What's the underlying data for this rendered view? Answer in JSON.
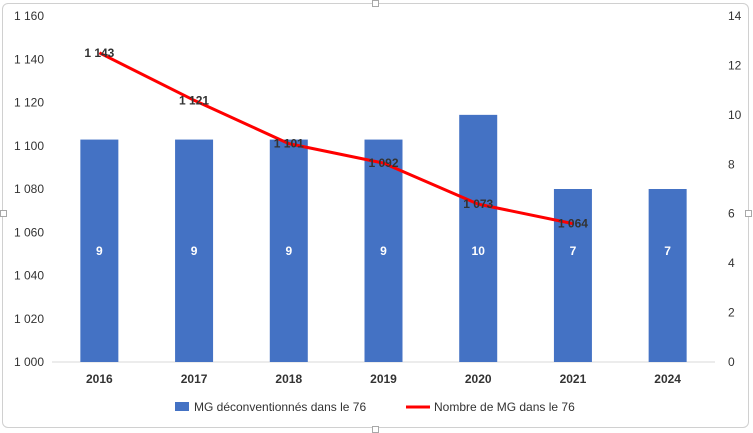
{
  "chart_data": {
    "type": "bar",
    "categories": [
      "2016",
      "2017",
      "2018",
      "2019",
      "2020",
      "2021",
      "2024"
    ],
    "series": [
      {
        "name": "MG déconventionnés dans le 76",
        "type": "bar",
        "axis": "secondary",
        "color": "#4472C4",
        "values": [
          9,
          9,
          9,
          9,
          10,
          7,
          7
        ],
        "labels": [
          "9",
          "9",
          "9",
          "9",
          "10",
          "7",
          "7"
        ]
      },
      {
        "name": "Nombre de MG dans le 76",
        "type": "line",
        "axis": "primary",
        "color": "#FF0000",
        "values": [
          1143,
          1121,
          1101,
          1092,
          1073,
          1064,
          null
        ],
        "labels": [
          "1 143",
          "1 121",
          "1 101",
          "1 092",
          "1 073",
          "1 064",
          ""
        ]
      }
    ],
    "y_primary": {
      "range": [
        1000,
        1160
      ],
      "tick_labels": [
        "1 000",
        "1 020",
        "1 040",
        "1 060",
        "1 080",
        "1 100",
        "1 120",
        "1 140",
        "1 160"
      ]
    },
    "y_secondary": {
      "range": [
        0,
        14
      ],
      "tick_labels": [
        "0",
        "2",
        "4",
        "6",
        "8",
        "10",
        "12",
        "14"
      ]
    },
    "grid": false,
    "legend": "bottom-center"
  }
}
